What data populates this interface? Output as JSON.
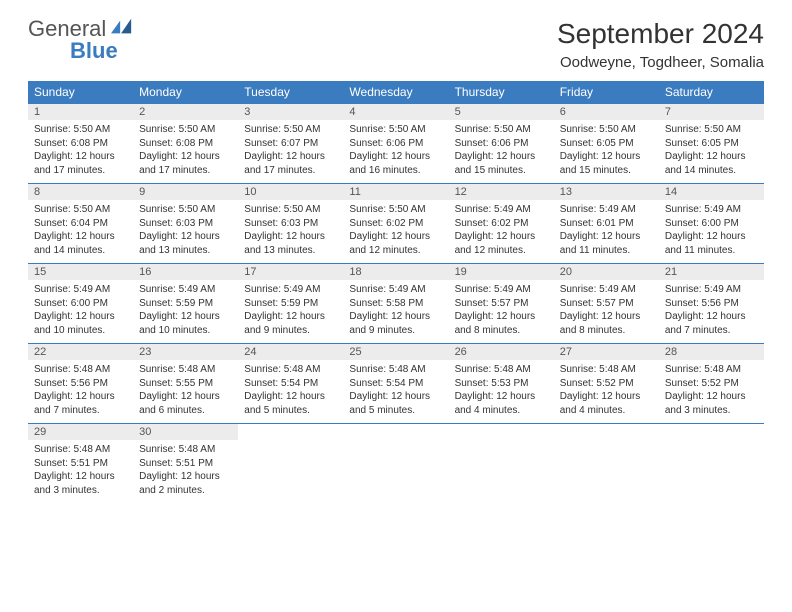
{
  "logo": {
    "word1": "General",
    "word2": "Blue"
  },
  "title": "September 2024",
  "location": "Oodweyne, Togdheer, Somalia",
  "colors": {
    "header_bg": "#3b7bbf",
    "header_text": "#ffffff",
    "daynum_bg": "#ececec",
    "text": "#333333",
    "page_bg": "#ffffff"
  },
  "day_headers": [
    "Sunday",
    "Monday",
    "Tuesday",
    "Wednesday",
    "Thursday",
    "Friday",
    "Saturday"
  ],
  "weeks": [
    [
      {
        "n": "1",
        "sr": "Sunrise: 5:50 AM",
        "ss": "Sunset: 6:08 PM",
        "d1": "Daylight: 12 hours",
        "d2": "and 17 minutes."
      },
      {
        "n": "2",
        "sr": "Sunrise: 5:50 AM",
        "ss": "Sunset: 6:08 PM",
        "d1": "Daylight: 12 hours",
        "d2": "and 17 minutes."
      },
      {
        "n": "3",
        "sr": "Sunrise: 5:50 AM",
        "ss": "Sunset: 6:07 PM",
        "d1": "Daylight: 12 hours",
        "d2": "and 17 minutes."
      },
      {
        "n": "4",
        "sr": "Sunrise: 5:50 AM",
        "ss": "Sunset: 6:06 PM",
        "d1": "Daylight: 12 hours",
        "d2": "and 16 minutes."
      },
      {
        "n": "5",
        "sr": "Sunrise: 5:50 AM",
        "ss": "Sunset: 6:06 PM",
        "d1": "Daylight: 12 hours",
        "d2": "and 15 minutes."
      },
      {
        "n": "6",
        "sr": "Sunrise: 5:50 AM",
        "ss": "Sunset: 6:05 PM",
        "d1": "Daylight: 12 hours",
        "d2": "and 15 minutes."
      },
      {
        "n": "7",
        "sr": "Sunrise: 5:50 AM",
        "ss": "Sunset: 6:05 PM",
        "d1": "Daylight: 12 hours",
        "d2": "and 14 minutes."
      }
    ],
    [
      {
        "n": "8",
        "sr": "Sunrise: 5:50 AM",
        "ss": "Sunset: 6:04 PM",
        "d1": "Daylight: 12 hours",
        "d2": "and 14 minutes."
      },
      {
        "n": "9",
        "sr": "Sunrise: 5:50 AM",
        "ss": "Sunset: 6:03 PM",
        "d1": "Daylight: 12 hours",
        "d2": "and 13 minutes."
      },
      {
        "n": "10",
        "sr": "Sunrise: 5:50 AM",
        "ss": "Sunset: 6:03 PM",
        "d1": "Daylight: 12 hours",
        "d2": "and 13 minutes."
      },
      {
        "n": "11",
        "sr": "Sunrise: 5:50 AM",
        "ss": "Sunset: 6:02 PM",
        "d1": "Daylight: 12 hours",
        "d2": "and 12 minutes."
      },
      {
        "n": "12",
        "sr": "Sunrise: 5:49 AM",
        "ss": "Sunset: 6:02 PM",
        "d1": "Daylight: 12 hours",
        "d2": "and 12 minutes."
      },
      {
        "n": "13",
        "sr": "Sunrise: 5:49 AM",
        "ss": "Sunset: 6:01 PM",
        "d1": "Daylight: 12 hours",
        "d2": "and 11 minutes."
      },
      {
        "n": "14",
        "sr": "Sunrise: 5:49 AM",
        "ss": "Sunset: 6:00 PM",
        "d1": "Daylight: 12 hours",
        "d2": "and 11 minutes."
      }
    ],
    [
      {
        "n": "15",
        "sr": "Sunrise: 5:49 AM",
        "ss": "Sunset: 6:00 PM",
        "d1": "Daylight: 12 hours",
        "d2": "and 10 minutes."
      },
      {
        "n": "16",
        "sr": "Sunrise: 5:49 AM",
        "ss": "Sunset: 5:59 PM",
        "d1": "Daylight: 12 hours",
        "d2": "and 10 minutes."
      },
      {
        "n": "17",
        "sr": "Sunrise: 5:49 AM",
        "ss": "Sunset: 5:59 PM",
        "d1": "Daylight: 12 hours",
        "d2": "and 9 minutes."
      },
      {
        "n": "18",
        "sr": "Sunrise: 5:49 AM",
        "ss": "Sunset: 5:58 PM",
        "d1": "Daylight: 12 hours",
        "d2": "and 9 minutes."
      },
      {
        "n": "19",
        "sr": "Sunrise: 5:49 AM",
        "ss": "Sunset: 5:57 PM",
        "d1": "Daylight: 12 hours",
        "d2": "and 8 minutes."
      },
      {
        "n": "20",
        "sr": "Sunrise: 5:49 AM",
        "ss": "Sunset: 5:57 PM",
        "d1": "Daylight: 12 hours",
        "d2": "and 8 minutes."
      },
      {
        "n": "21",
        "sr": "Sunrise: 5:49 AM",
        "ss": "Sunset: 5:56 PM",
        "d1": "Daylight: 12 hours",
        "d2": "and 7 minutes."
      }
    ],
    [
      {
        "n": "22",
        "sr": "Sunrise: 5:48 AM",
        "ss": "Sunset: 5:56 PM",
        "d1": "Daylight: 12 hours",
        "d2": "and 7 minutes."
      },
      {
        "n": "23",
        "sr": "Sunrise: 5:48 AM",
        "ss": "Sunset: 5:55 PM",
        "d1": "Daylight: 12 hours",
        "d2": "and 6 minutes."
      },
      {
        "n": "24",
        "sr": "Sunrise: 5:48 AM",
        "ss": "Sunset: 5:54 PM",
        "d1": "Daylight: 12 hours",
        "d2": "and 5 minutes."
      },
      {
        "n": "25",
        "sr": "Sunrise: 5:48 AM",
        "ss": "Sunset: 5:54 PM",
        "d1": "Daylight: 12 hours",
        "d2": "and 5 minutes."
      },
      {
        "n": "26",
        "sr": "Sunrise: 5:48 AM",
        "ss": "Sunset: 5:53 PM",
        "d1": "Daylight: 12 hours",
        "d2": "and 4 minutes."
      },
      {
        "n": "27",
        "sr": "Sunrise: 5:48 AM",
        "ss": "Sunset: 5:52 PM",
        "d1": "Daylight: 12 hours",
        "d2": "and 4 minutes."
      },
      {
        "n": "28",
        "sr": "Sunrise: 5:48 AM",
        "ss": "Sunset: 5:52 PM",
        "d1": "Daylight: 12 hours",
        "d2": "and 3 minutes."
      }
    ],
    [
      {
        "n": "29",
        "sr": "Sunrise: 5:48 AM",
        "ss": "Sunset: 5:51 PM",
        "d1": "Daylight: 12 hours",
        "d2": "and 3 minutes."
      },
      {
        "n": "30",
        "sr": "Sunrise: 5:48 AM",
        "ss": "Sunset: 5:51 PM",
        "d1": "Daylight: 12 hours",
        "d2": "and 2 minutes."
      },
      null,
      null,
      null,
      null,
      null
    ]
  ]
}
